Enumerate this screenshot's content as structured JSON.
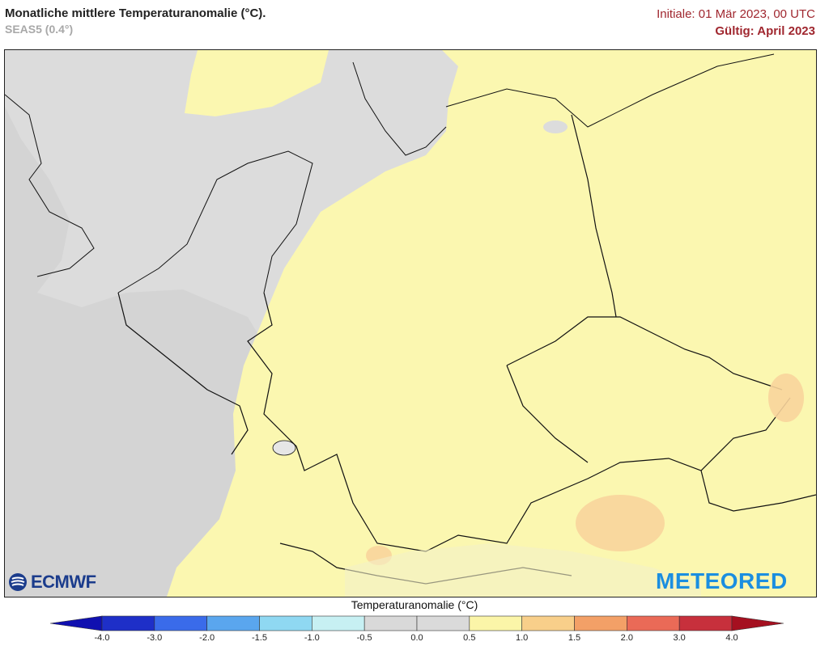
{
  "header": {
    "title": "Monatliche mittlere Temperaturanomalie (°C).",
    "subtitle": "SEAS5 (0.4°)",
    "initial": "Initiale: 01 Mär 2023, 00 UTC",
    "valid": "Gültig: April 2023"
  },
  "logos": {
    "left": "ECMWF",
    "right": "METEORED"
  },
  "legend": {
    "title": "Temperaturanomalie (°C)",
    "ticks": [
      "-4.0",
      "-3.0",
      "-2.0",
      "-1.5",
      "-1.0",
      "-0.5",
      "0.0",
      "0.5",
      "1.0",
      "1.5",
      "2.0",
      "3.0",
      "4.0"
    ],
    "colors": [
      "#1e2fc8",
      "#3a6bea",
      "#5aa6ee",
      "#8fd8f2",
      "#c7f0f3",
      "#d9d9d9",
      "#dadada",
      "#fbf5a8",
      "#f8cf8a",
      "#f3a067",
      "#ea6a57",
      "#c7303c"
    ],
    "under_color": "#1010b0",
    "over_color": "#a51020"
  },
  "map": {
    "ocean_color": "#dcdcdc",
    "land_neutral_color": "#dcdcdc",
    "anomaly_fill_0_5_to_1": "#fbf7b0",
    "anomaly_fill_1_to_1_5": "#f8d49c",
    "border_color": "#111111"
  }
}
